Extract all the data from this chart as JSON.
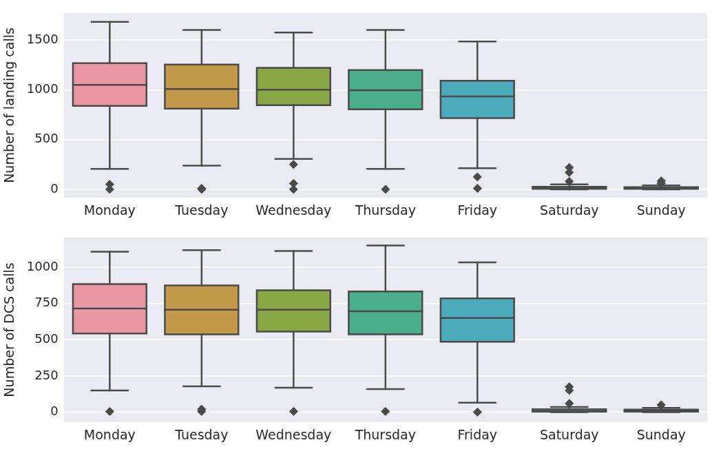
{
  "chart_data": [
    {
      "type": "box",
      "ylabel": "Number of landing calls",
      "categories": [
        "Monday",
        "Tuesday",
        "Wednesday",
        "Thursday",
        "Friday",
        "Saturday",
        "Sunday"
      ],
      "colors": [
        "#ea96a3",
        "#c39a49",
        "#8aa745",
        "#4bae8c",
        "#4cabbb",
        "#9fa8e8",
        "#e398dd"
      ],
      "boxes": [
        {
          "low": 205,
          "q1": 840,
          "median": 1051,
          "q3": 1270,
          "high": 1686,
          "outliers": [
            0,
            50
          ]
        },
        {
          "low": 239,
          "q1": 812,
          "median": 1010,
          "q3": 1256,
          "high": 1604,
          "outliers": [
            0,
            10
          ]
        },
        {
          "low": 307,
          "q1": 846,
          "median": 1003,
          "q3": 1222,
          "high": 1577,
          "outliers": [
            250,
            60,
            0
          ]
        },
        {
          "low": 205,
          "q1": 805,
          "median": 997,
          "q3": 1201,
          "high": 1604,
          "outliers": [
            0
          ]
        },
        {
          "low": 212,
          "q1": 717,
          "median": 935,
          "q3": 1092,
          "high": 1488,
          "outliers": [
            125,
            10
          ]
        },
        {
          "low": 0,
          "q1": 5,
          "median": 12,
          "q3": 25,
          "high": 50,
          "outliers": [
            80,
            170,
            220
          ]
        },
        {
          "low": 0,
          "q1": 5,
          "median": 12,
          "q3": 22,
          "high": 40,
          "outliers": [
            60,
            85
          ]
        }
      ],
      "ylim": [
        -85,
        1775
      ],
      "yticks": [
        0,
        500,
        1000,
        1500
      ],
      "grid": "y",
      "legend": false,
      "marker": "diamond"
    },
    {
      "type": "box",
      "ylabel": "Number of DCS calls",
      "categories": [
        "Monday",
        "Tuesday",
        "Wednesday",
        "Thursday",
        "Friday",
        "Saturday",
        "Sunday"
      ],
      "colors": [
        "#ea96a3",
        "#c39a49",
        "#8aa745",
        "#4bae8c",
        "#4cabbb",
        "#9fa8e8",
        "#e398dd"
      ],
      "boxes": [
        {
          "low": 150,
          "q1": 542,
          "median": 715,
          "q3": 883,
          "high": 1107,
          "outliers": [
            5
          ]
        },
        {
          "low": 178,
          "q1": 537,
          "median": 706,
          "q3": 874,
          "high": 1117,
          "outliers": [
            5,
            20
          ]
        },
        {
          "low": 168,
          "q1": 556,
          "median": 706,
          "q3": 841,
          "high": 1112,
          "outliers": [
            5
          ]
        },
        {
          "low": 159,
          "q1": 537,
          "median": 696,
          "q3": 832,
          "high": 1150,
          "outliers": [
            5
          ]
        },
        {
          "low": 65,
          "q1": 486,
          "median": 650,
          "q3": 785,
          "high": 1033,
          "outliers": [
            0
          ]
        },
        {
          "low": 0,
          "q1": 3,
          "median": 8,
          "q3": 20,
          "high": 35,
          "outliers": [
            60,
            150,
            175
          ]
        },
        {
          "low": 0,
          "q1": 3,
          "median": 8,
          "q3": 18,
          "high": 30,
          "outliers": [
            50
          ]
        }
      ],
      "ylim": [
        -70,
        1205
      ],
      "yticks": [
        0,
        250,
        500,
        750,
        1000
      ],
      "grid": "y",
      "legend": false,
      "marker": "diamond"
    }
  ]
}
